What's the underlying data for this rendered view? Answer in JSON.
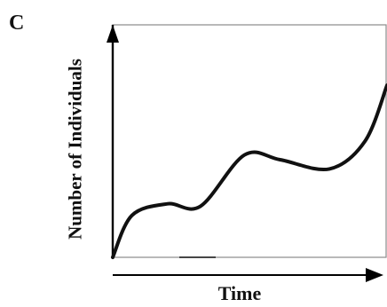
{
  "chart_data": {
    "type": "line",
    "panel_label": "C",
    "title": "",
    "xlabel": "Time",
    "ylabel": "Number of Individuals",
    "ticks": false,
    "grid": false,
    "legend": false,
    "xlim": [
      0,
      100
    ],
    "ylim": [
      0,
      100
    ],
    "series": [
      {
        "x": [
          0,
          7,
          20,
          32,
          48,
          61,
          79,
          92,
          100
        ],
        "y": [
          0,
          18,
          23,
          22,
          44,
          42,
          38,
          50,
          74
        ]
      }
    ],
    "colors": {
      "line": "#111111",
      "frame": "#8a8a8a"
    }
  }
}
